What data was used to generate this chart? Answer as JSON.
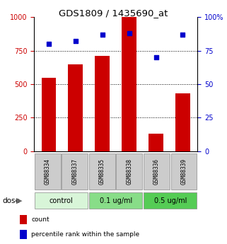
{
  "title": "GDS1809 / 1435690_at",
  "samples": [
    "GSM88334",
    "GSM88337",
    "GSM88335",
    "GSM88338",
    "GSM88336",
    "GSM88339"
  ],
  "bar_values": [
    550,
    650,
    710,
    1000,
    130,
    430
  ],
  "dot_values": [
    80,
    82,
    87,
    88,
    70,
    87
  ],
  "bar_color": "#cc0000",
  "dot_color": "#0000cc",
  "ylim_left": [
    0,
    1000
  ],
  "ylim_right": [
    0,
    100
  ],
  "yticks_left": [
    0,
    250,
    500,
    750,
    1000
  ],
  "yticks_right": [
    0,
    25,
    50,
    75,
    100
  ],
  "ytick_labels_left": [
    "0",
    "250",
    "500",
    "750",
    "1000"
  ],
  "ytick_labels_right": [
    "0",
    "25",
    "50",
    "75",
    "100%"
  ],
  "grid_vals": [
    250,
    500,
    750
  ],
  "dose_groups": [
    {
      "label": "control",
      "indices": [
        0,
        1
      ],
      "color": "#d8f5d8"
    },
    {
      "label": "0.1 ug/ml",
      "indices": [
        2,
        3
      ],
      "color": "#88dd88"
    },
    {
      "label": "0.5 ug/ml",
      "indices": [
        4,
        5
      ],
      "color": "#55cc55"
    }
  ],
  "dose_label": "dose",
  "legend_items": [
    {
      "label": "count",
      "color": "#cc0000"
    },
    {
      "label": "percentile rank within the sample",
      "color": "#0000cc"
    }
  ],
  "left_color": "#cc0000",
  "right_color": "#0000cc",
  "sample_box_color": "#cccccc",
  "sample_box_edge": "#888888"
}
